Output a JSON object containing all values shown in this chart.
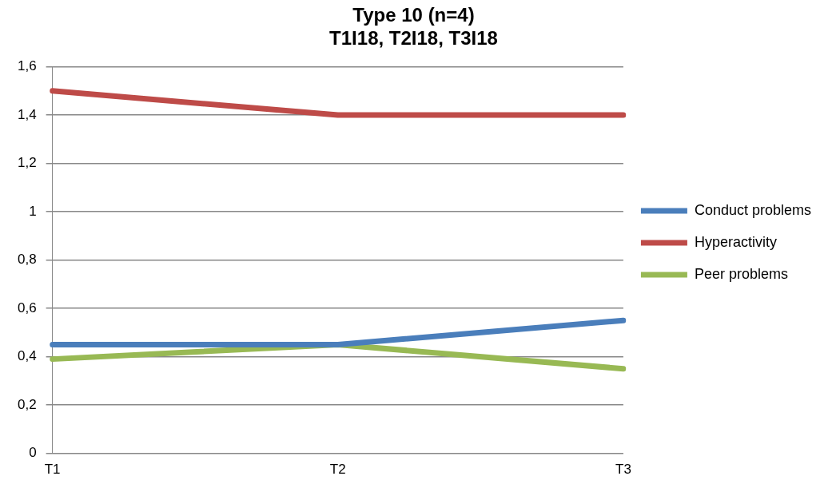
{
  "chart_data": {
    "type": "line",
    "title": [
      "Type 10 (n=4)",
      "T1I18, T2I18, T3I18"
    ],
    "categories": [
      "T1",
      "T2",
      "T3"
    ],
    "series": [
      {
        "name": "Conduct problems",
        "color": "#4a7ebb",
        "values": [
          0.45,
          0.45,
          0.55
        ]
      },
      {
        "name": "Hyperactivity",
        "color": "#be4b48",
        "values": [
          1.5,
          1.4,
          1.4
        ]
      },
      {
        "name": "Peer problems",
        "color": "#98b954",
        "values": [
          0.39,
          0.45,
          0.35
        ]
      }
    ],
    "ylim": [
      0,
      1.6
    ],
    "yticks": [
      {
        "value": 0,
        "label": "0"
      },
      {
        "value": 0.2,
        "label": "0,2"
      },
      {
        "value": 0.4,
        "label": "0,4"
      },
      {
        "value": 0.6,
        "label": "0,6"
      },
      {
        "value": 0.8,
        "label": "0,8"
      },
      {
        "value": 1,
        "label": "1"
      },
      {
        "value": 1.2,
        "label": "1,2"
      },
      {
        "value": 1.4,
        "label": "1,4"
      },
      {
        "value": 1.6,
        "label": "1,6"
      }
    ],
    "grid": "y",
    "legend": "right",
    "marker": "none",
    "line_style": "solid"
  }
}
